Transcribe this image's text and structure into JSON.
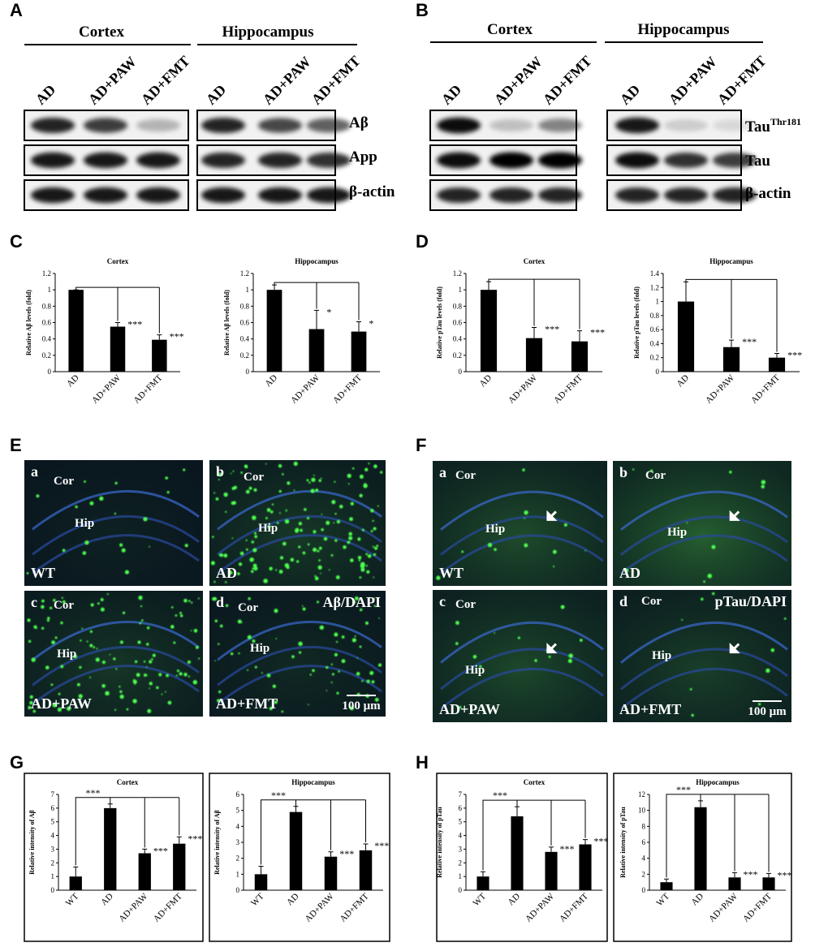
{
  "panel_labels": [
    "A",
    "B",
    "C",
    "D",
    "E",
    "F",
    "G",
    "H"
  ],
  "western_blots": [
    {
      "headers": [
        "Cortex",
        "Hippocampus"
      ],
      "lanes": [
        "AD",
        "AD+PAW",
        "AD+FMT"
      ],
      "rows": [
        {
          "text": "Aβ"
        },
        {
          "text": "App"
        },
        {
          "text": "β-actin"
        }
      ]
    },
    {
      "headers": [
        "Cortex",
        "Hippocampus"
      ],
      "lanes": [
        "AD",
        "AD+PAW",
        "AD+FMT"
      ],
      "rows": [
        {
          "text": "Tau",
          "sup": "Thr181"
        },
        {
          "text": "Tau"
        },
        {
          "text": "β-actin"
        }
      ]
    }
  ],
  "micrographs": [
    {
      "stain": "Aβ/DAPI",
      "scale_bar": "100 μm",
      "images": [
        {
          "letter": "a",
          "group": "WT",
          "regions": [
            "Cor",
            "Hip"
          ]
        },
        {
          "letter": "b",
          "group": "AD",
          "regions": [
            "Cor",
            "Hip"
          ]
        },
        {
          "letter": "c",
          "group": "AD+PAW",
          "regions": [
            "Cor",
            "Hip"
          ]
        },
        {
          "letter": "d",
          "group": "AD+FMT",
          "regions": [
            "Cor",
            "Hip"
          ]
        }
      ]
    },
    {
      "stain": "pTau/DAPI",
      "scale_bar": "100 μm",
      "images": [
        {
          "letter": "a",
          "group": "WT",
          "regions": [
            "Cor",
            "Hip"
          ]
        },
        {
          "letter": "b",
          "group": "AD",
          "regions": [
            "Cor",
            "Hip"
          ]
        },
        {
          "letter": "c",
          "group": "AD+PAW",
          "regions": [
            "Cor",
            "Hip"
          ]
        },
        {
          "letter": "d",
          "group": "AD+FMT",
          "regions": [
            "Cor",
            "Hip"
          ]
        }
      ]
    }
  ],
  "chart_data": [
    {
      "type": "bar",
      "title": "Cortex",
      "y_label": "Relative Aβ levels (fold)",
      "categories": [
        "AD",
        "AD+PAW",
        "AD+FMT"
      ],
      "values": [
        1,
        0.55,
        0.39
      ],
      "errors": [
        0,
        0.05,
        0.06
      ],
      "significance": [
        null,
        "***",
        "***"
      ],
      "color": "#000000",
      "ylim": [
        0,
        1.2
      ],
      "yticks": [
        0,
        0.2,
        0.4,
        0.6,
        0.8,
        1,
        1.2
      ]
    },
    {
      "type": "bar",
      "title": "Hippocampus",
      "y_label": "Relative Aβ levels (fold)",
      "categories": [
        "AD",
        "AD+PAW",
        "AD+FMT"
      ],
      "values": [
        1,
        0.52,
        0.49
      ],
      "errors": [
        0.06,
        0.23,
        0.12
      ],
      "significance": [
        null,
        "*",
        "*"
      ],
      "color": "#000000",
      "ylim": [
        0,
        1.2
      ],
      "yticks": [
        0,
        0.2,
        0.4,
        0.6,
        0.8,
        1,
        1.2
      ]
    },
    {
      "type": "bar",
      "title": "Cortex",
      "y_label": "Relative pTau levels (fold)",
      "categories": [
        "AD",
        "AD+PAW",
        "AD+FMT"
      ],
      "values": [
        1,
        0.41,
        0.37
      ],
      "errors": [
        0.1,
        0.13,
        0.13
      ],
      "significance": [
        null,
        "***",
        "***"
      ],
      "color": "#000000",
      "ylim": [
        0,
        1.2
      ],
      "yticks": [
        0,
        0.2,
        0.4,
        0.6,
        0.8,
        1,
        1.2
      ]
    },
    {
      "type": "bar",
      "title": "Hippocampus",
      "y_label": "Relative pTau levels (fold)",
      "categories": [
        "AD",
        "AD+PAW",
        "AD+FMT"
      ],
      "values": [
        1,
        0.35,
        0.2
      ],
      "errors": [
        0.28,
        0.1,
        0.06
      ],
      "significance": [
        null,
        "***",
        "***"
      ],
      "color": "#000000",
      "ylim": [
        0,
        1.4
      ],
      "yticks": [
        0,
        0.2,
        0.4,
        0.6,
        0.8,
        1,
        1.2,
        1.4
      ]
    },
    {
      "type": "bar",
      "title": "Cortex",
      "y_label": "Relative intensity of Aβ",
      "categories": [
        "WT",
        "AD",
        "AD+PAW",
        "AD+FMT"
      ],
      "values": [
        1,
        6,
        2.7,
        3.4
      ],
      "errors": [
        0.7,
        0.3,
        0.3,
        0.5
      ],
      "significance": [
        null,
        "***",
        "***",
        "***"
      ],
      "color": "#000000",
      "ylim": [
        0,
        7
      ],
      "yticks": [
        0,
        1,
        2,
        3,
        4,
        5,
        6,
        7
      ]
    },
    {
      "type": "bar",
      "title": "Hippocampus",
      "y_label": "Relative intensity of Aβ",
      "categories": [
        "WT",
        "AD",
        "AD+PAW",
        "AD+FMT"
      ],
      "values": [
        1,
        4.9,
        2.1,
        2.5
      ],
      "errors": [
        0.5,
        0.35,
        0.3,
        0.4
      ],
      "significance": [
        null,
        "***",
        "***",
        "***"
      ],
      "color": "#000000",
      "ylim": [
        0,
        6
      ],
      "yticks": [
        0,
        1,
        2,
        3,
        4,
        5,
        6
      ]
    },
    {
      "type": "bar",
      "title": "Cortex",
      "y_label": "Relative intensity of pTau",
      "categories": [
        "WT",
        "AD",
        "AD+PAW",
        "AD+FMT"
      ],
      "values": [
        1,
        5.4,
        2.8,
        3.35
      ],
      "errors": [
        0.35,
        0.7,
        0.35,
        0.35
      ],
      "significance": [
        null,
        "***",
        "***",
        "***"
      ],
      "color": "#000000",
      "ylim": [
        0,
        7
      ],
      "yticks": [
        0,
        1,
        2,
        3,
        4,
        5,
        6,
        7
      ]
    },
    {
      "type": "bar",
      "title": "Hippocampus",
      "y_label": "Relative intensity of pTau",
      "categories": [
        "WT",
        "AD",
        "AD+PAW",
        "AD+FMT"
      ],
      "values": [
        1,
        10.4,
        1.6,
        1.6
      ],
      "errors": [
        0.4,
        0.8,
        0.6,
        0.5
      ],
      "significance": [
        null,
        "***",
        "***",
        "***"
      ],
      "color": "#000000",
      "ylim": [
        0,
        12
      ],
      "yticks": [
        0,
        2,
        4,
        6,
        8,
        10,
        12
      ]
    }
  ]
}
